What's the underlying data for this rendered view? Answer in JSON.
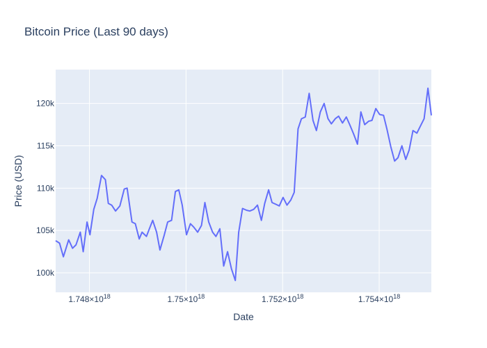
{
  "chart_data": {
    "type": "line",
    "title": "Bitcoin Price (Last 90 days)",
    "xlabel": "Date",
    "ylabel": "Price (USD)",
    "xlim": [
      1.7473e+18,
      1.75508e+18
    ],
    "ylim": [
      97700,
      124000
    ],
    "grid": true,
    "x_ticks": [
      {
        "value": 1.748e+18,
        "mantissa": "1.748",
        "exponent": "18"
      },
      {
        "value": 1.75e+18,
        "mantissa": "1.75",
        "exponent": "18"
      },
      {
        "value": 1.752e+18,
        "mantissa": "1.752",
        "exponent": "18"
      },
      {
        "value": 1.754e+18,
        "mantissa": "1.754",
        "exponent": "18"
      }
    ],
    "y_ticks": [
      {
        "value": 100000,
        "label": "100k"
      },
      {
        "value": 105000,
        "label": "105k"
      },
      {
        "value": 110000,
        "label": "110k"
      },
      {
        "value": 115000,
        "label": "115k"
      },
      {
        "value": 120000,
        "label": "120k"
      }
    ],
    "series": [
      {
        "color": "#636efa",
        "x": [
          1.7473e+18,
          1.74738e+18,
          1.74746e+18,
          1.74757e+18,
          1.74765e+18,
          1.74772e+18,
          1.74781e+18,
          1.74787e+18,
          1.74795e+18,
          1.74801e+18,
          1.74809e+18,
          1.74816e+18,
          1.74825e+18,
          1.74833e+18,
          1.74839e+18,
          1.74846e+18,
          1.74854e+18,
          1.74863e+18,
          1.74872e+18,
          1.74878e+18,
          1.74888e+18,
          1.74895e+18,
          1.74903e+18,
          1.74909e+18,
          1.74918e+18,
          1.74924e+18,
          1.74931e+18,
          1.74939e+18,
          1.74946e+18,
          1.74955e+18,
          1.74962e+18,
          1.7497e+18,
          1.74978e+18,
          1.74985e+18,
          1.74992e+18,
          1.75001e+18,
          1.75009e+18,
          1.75016e+18,
          1.75024e+18,
          1.75032e+18,
          1.75039e+18,
          1.75047e+18,
          1.75055e+18,
          1.75062e+18,
          1.7507e+18,
          1.75078e+18,
          1.75086e+18,
          1.75094e+18,
          1.75102e+18,
          1.75109e+18,
          1.75117e+18,
          1.75125e+18,
          1.75132e+18,
          1.7514e+18,
          1.75148e+18,
          1.75156e+18,
          1.75163e+18,
          1.75171e+18,
          1.75178e+18,
          1.75186e+18,
          1.75193e+18,
          1.75201e+18,
          1.75209e+18,
          1.75217e+18,
          1.75224e+18,
          1.75232e+18,
          1.75239e+18,
          1.75247e+18,
          1.75255e+18,
          1.75263e+18,
          1.7527e+18,
          1.75278e+18,
          1.75286e+18,
          1.75294e+18,
          1.75301e+18,
          1.75309e+18,
          1.75316e+18,
          1.75324e+18,
          1.75332e+18,
          1.75339e+18,
          1.75347e+18,
          1.75355e+18,
          1.75362e+18,
          1.7537e+18,
          1.75378e+18,
          1.75385e+18,
          1.75393e+18,
          1.75401e+18,
          1.75409e+18,
          1.75416e+18,
          1.75424e+18,
          1.75432e+18,
          1.75439e+18,
          1.75447e+18,
          1.75455e+18,
          1.75462e+18,
          1.7547e+18,
          1.75478e+18,
          1.75486e+18,
          1.75493e+18,
          1.75501e+18,
          1.75508e+18
        ],
        "y": [
          103800,
          103500,
          101900,
          103900,
          102900,
          103300,
          104800,
          102500,
          106000,
          104500,
          107500,
          108800,
          111500,
          111000,
          108200,
          108000,
          107300,
          107900,
          109900,
          110000,
          106000,
          105800,
          104000,
          104800,
          104300,
          105200,
          106200,
          104800,
          102700,
          104500,
          106000,
          106200,
          109600,
          109800,
          108000,
          104500,
          105800,
          105400,
          104800,
          105600,
          108300,
          106000,
          104800,
          104300,
          105200,
          100800,
          102500,
          100500,
          99100,
          104800,
          107600,
          107400,
          107300,
          107500,
          108000,
          106200,
          108200,
          109800,
          108300,
          108100,
          107900,
          108900,
          108000,
          108600,
          109500,
          117000,
          118200,
          118400,
          121200,
          118000,
          116800,
          119000,
          120000,
          118200,
          117600,
          118200,
          118500,
          117700,
          118400,
          117500,
          116400,
          115200,
          119000,
          117500,
          117900,
          118000,
          119400,
          118700,
          118600,
          117000,
          114900,
          113200,
          113600,
          115000,
          113400,
          114500,
          116800,
          116500,
          117400,
          118200,
          121800,
          118600
        ]
      }
    ]
  }
}
